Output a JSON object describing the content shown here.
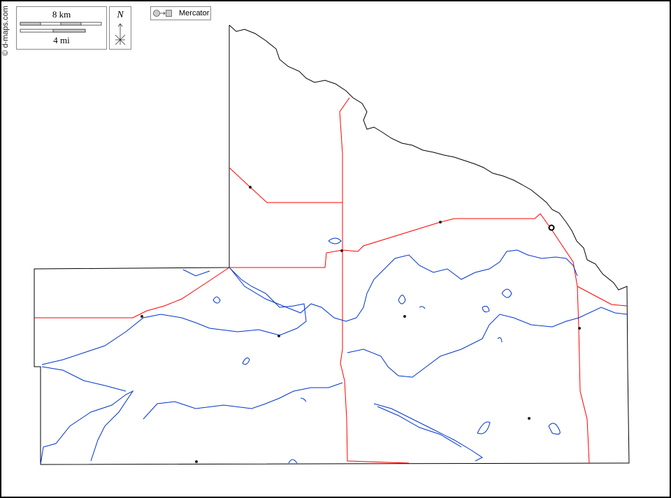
{
  "credit": "© d-maps.com",
  "scale": {
    "km_label": "8 km",
    "mi_label": "4 mi"
  },
  "north_label": "N",
  "projection_label": "Mercator",
  "colors": {
    "border": "#000000",
    "roads": "#ff0000",
    "rivers": "#0033cc",
    "frame": "#000000"
  },
  "icons": [
    "north-arrow-icon",
    "globe-to-map-icon",
    "town-dot-icon",
    "city-circle-icon"
  ]
}
